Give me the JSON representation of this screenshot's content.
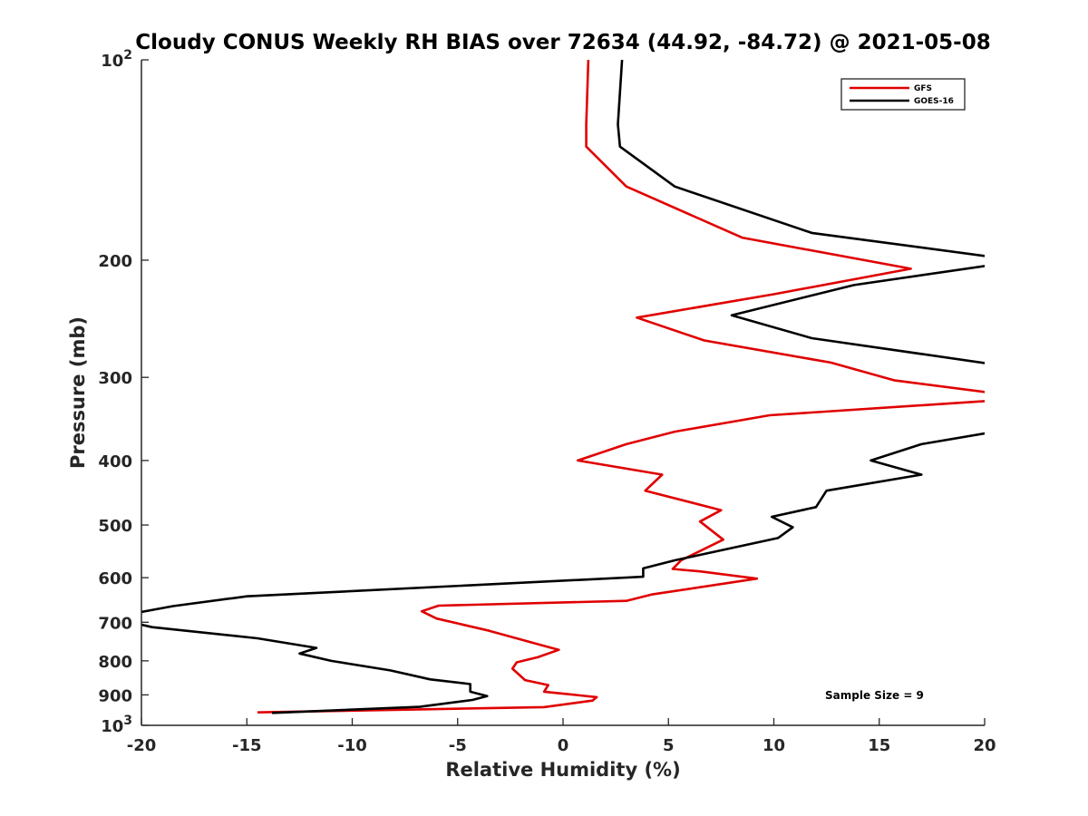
{
  "chart_data": {
    "type": "line",
    "title": "Cloudy CONUS Weekly RH BIAS over 72634 (44.92, -84.72) @ 2021-05-08",
    "xlabel": "Relative Humidity (%)",
    "ylabel": "Pressure (mb)",
    "xlim": [
      -20,
      20
    ],
    "ylim": [
      100,
      1000
    ],
    "yscale": "log",
    "y_reversed": true,
    "grid": false,
    "legend_position": "top-right",
    "x_ticks": [
      "-20",
      "-15",
      "-10",
      "-5",
      "0",
      "5",
      "10",
      "15",
      "20"
    ],
    "y_ticks": [
      {
        "value": 100,
        "base": "10",
        "exp": "2"
      },
      {
        "value": 200,
        "label": "200"
      },
      {
        "value": 300,
        "label": "300"
      },
      {
        "value": 400,
        "label": "400"
      },
      {
        "value": 500,
        "label": "500"
      },
      {
        "value": 600,
        "label": "600"
      },
      {
        "value": 700,
        "label": "700"
      },
      {
        "value": 800,
        "label": "800"
      },
      {
        "value": 900,
        "label": "900"
      },
      {
        "value": 1000,
        "base": "10",
        "exp": "3"
      }
    ],
    "annotation": "Sample Size = 9",
    "series": [
      {
        "name": "GFS",
        "color": "#e00000",
        "points": [
          [
            1.2,
            100
          ],
          [
            1.1,
            125
          ],
          [
            1.1,
            135
          ],
          [
            3.0,
            155
          ],
          [
            8.5,
            185
          ],
          [
            16.5,
            206
          ],
          [
            10.0,
            225
          ],
          [
            3.5,
            244
          ],
          [
            6.7,
            264
          ],
          [
            12.7,
            285
          ],
          [
            15.7,
            303
          ],
          [
            20.5,
            317
          ],
          [
            20.5,
            325
          ],
          [
            9.8,
            342
          ],
          [
            5.3,
            362
          ],
          [
            3.0,
            378
          ],
          [
            0.7,
            400
          ],
          [
            4.7,
            420
          ],
          [
            3.9,
            444
          ],
          [
            7.5,
            475
          ],
          [
            6.5,
            494
          ],
          [
            7.6,
            526
          ],
          [
            5.6,
            565
          ],
          [
            5.2,
            582
          ],
          [
            6.5,
            587
          ],
          [
            9.2,
            602
          ],
          [
            4.2,
            636
          ],
          [
            3.0,
            650
          ],
          [
            -5.9,
            661
          ],
          [
            -6.7,
            674
          ],
          [
            -6.0,
            691
          ],
          [
            -3.5,
            721
          ],
          [
            -1.0,
            758
          ],
          [
            -0.2,
            770
          ],
          [
            -1.2,
            790
          ],
          [
            -2.2,
            804
          ],
          [
            -2.4,
            822
          ],
          [
            -1.8,
            855
          ],
          [
            -0.7,
            870
          ],
          [
            -0.9,
            890
          ],
          [
            1.6,
            907
          ],
          [
            1.4,
            918
          ],
          [
            -0.9,
            939
          ],
          [
            -14.5,
            956
          ]
        ]
      },
      {
        "name": "GOES-16",
        "color": "#000000",
        "points": [
          [
            2.8,
            100
          ],
          [
            2.6,
            125
          ],
          [
            2.7,
            135
          ],
          [
            5.3,
            155
          ],
          [
            11.8,
            182
          ],
          [
            20.5,
            198
          ],
          [
            20.5,
            203
          ],
          [
            13.8,
            218
          ],
          [
            8.0,
            242
          ],
          [
            11.8,
            262
          ],
          [
            20.5,
            287
          ],
          [
            20.5,
            287
          ],
          [
            20.5,
            362
          ],
          [
            17.0,
            378
          ],
          [
            14.6,
            400
          ],
          [
            17.0,
            420
          ],
          [
            12.5,
            444
          ],
          [
            12.0,
            470
          ],
          [
            9.9,
            486
          ],
          [
            10.9,
            504
          ],
          [
            10.2,
            523
          ],
          [
            5.3,
            565
          ],
          [
            3.8,
            581
          ],
          [
            3.8,
            598
          ],
          [
            -15.0,
            640
          ],
          [
            -18.5,
            662
          ],
          [
            -20.5,
            680
          ],
          [
            -20.5,
            700
          ],
          [
            -19.5,
            712
          ],
          [
            -14.5,
            740
          ],
          [
            -11.7,
            765
          ],
          [
            -12.5,
            780
          ],
          [
            -11.0,
            800
          ],
          [
            -8.2,
            827
          ],
          [
            -6.3,
            853
          ],
          [
            -4.4,
            867
          ],
          [
            -4.4,
            890
          ],
          [
            -3.6,
            904
          ],
          [
            -4.3,
            916
          ],
          [
            -6.8,
            938
          ],
          [
            -13.8,
            958
          ]
        ]
      }
    ]
  }
}
